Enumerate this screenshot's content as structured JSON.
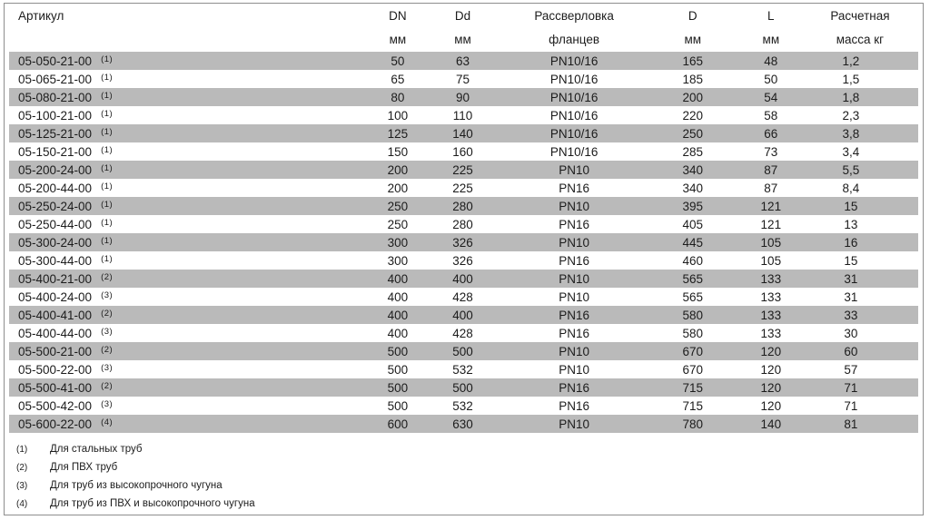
{
  "colors": {
    "stripe_gray": "#bababa",
    "border_gray": "#8e8e8e",
    "text": "#1c1c1c"
  },
  "table": {
    "columns": [
      {
        "label": "Артикул",
        "unit": ""
      },
      {
        "label": "DN",
        "unit": "мм"
      },
      {
        "label": "Dd",
        "unit": "мм"
      },
      {
        "label": "Рассверловка",
        "unit": "фланцев"
      },
      {
        "label": "D",
        "unit": "мм"
      },
      {
        "label": "L",
        "unit": "мм"
      },
      {
        "label": "Расчетная",
        "unit": "масса кг"
      }
    ],
    "rows": [
      {
        "article": "05-050-21-00",
        "ref": "(1)",
        "dn": "50",
        "dd": "63",
        "pn": "PN10/16",
        "d": "165",
        "l": "48",
        "mass": "1,2"
      },
      {
        "article": "05-065-21-00",
        "ref": "(1)",
        "dn": "65",
        "dd": "75",
        "pn": "PN10/16",
        "d": "185",
        "l": "50",
        "mass": "1,5"
      },
      {
        "article": "05-080-21-00",
        "ref": "(1)",
        "dn": "80",
        "dd": "90",
        "pn": "PN10/16",
        "d": "200",
        "l": "54",
        "mass": "1,8"
      },
      {
        "article": "05-100-21-00",
        "ref": "(1)",
        "dn": "100",
        "dd": "110",
        "pn": "PN10/16",
        "d": "220",
        "l": "58",
        "mass": "2,3"
      },
      {
        "article": "05-125-21-00",
        "ref": "(1)",
        "dn": "125",
        "dd": "140",
        "pn": "PN10/16",
        "d": "250",
        "l": "66",
        "mass": "3,8"
      },
      {
        "article": "05-150-21-00",
        "ref": "(1)",
        "dn": "150",
        "dd": "160",
        "pn": "PN10/16",
        "d": "285",
        "l": "73",
        "mass": "3,4"
      },
      {
        "article": "05-200-24-00",
        "ref": "(1)",
        "dn": "200",
        "dd": "225",
        "pn": "PN10",
        "d": "340",
        "l": "87",
        "mass": "5,5"
      },
      {
        "article": "05-200-44-00",
        "ref": "(1)",
        "dn": "200",
        "dd": "225",
        "pn": "PN16",
        "d": "340",
        "l": "87",
        "mass": "8,4"
      },
      {
        "article": "05-250-24-00",
        "ref": "(1)",
        "dn": "250",
        "dd": "280",
        "pn": "PN10",
        "d": "395",
        "l": "121",
        "mass": "15"
      },
      {
        "article": "05-250-44-00",
        "ref": "(1)",
        "dn": "250",
        "dd": "280",
        "pn": "PN16",
        "d": "405",
        "l": "121",
        "mass": "13"
      },
      {
        "article": "05-300-24-00",
        "ref": "(1)",
        "dn": "300",
        "dd": "326",
        "pn": "PN10",
        "d": "445",
        "l": "105",
        "mass": "16"
      },
      {
        "article": "05-300-44-00",
        "ref": "(1)",
        "dn": "300",
        "dd": "326",
        "pn": "PN16",
        "d": "460",
        "l": "105",
        "mass": "15"
      },
      {
        "article": "05-400-21-00",
        "ref": "(2)",
        "dn": "400",
        "dd": "400",
        "pn": "PN10",
        "d": "565",
        "l": "133",
        "mass": "31"
      },
      {
        "article": "05-400-24-00",
        "ref": "(3)",
        "dn": "400",
        "dd": "428",
        "pn": "PN10",
        "d": "565",
        "l": "133",
        "mass": "31"
      },
      {
        "article": "05-400-41-00",
        "ref": "(2)",
        "dn": "400",
        "dd": "400",
        "pn": "PN16",
        "d": "580",
        "l": "133",
        "mass": "33"
      },
      {
        "article": "05-400-44-00",
        "ref": "(3)",
        "dn": "400",
        "dd": "428",
        "pn": "PN16",
        "d": "580",
        "l": "133",
        "mass": "30"
      },
      {
        "article": "05-500-21-00",
        "ref": "(2)",
        "dn": "500",
        "dd": "500",
        "pn": "PN10",
        "d": "670",
        "l": "120",
        "mass": "60"
      },
      {
        "article": "05-500-22-00",
        "ref": "(3)",
        "dn": "500",
        "dd": "532",
        "pn": "PN10",
        "d": "670",
        "l": "120",
        "mass": "57"
      },
      {
        "article": "05-500-41-00",
        "ref": "(2)",
        "dn": "500",
        "dd": "500",
        "pn": "PN16",
        "d": "715",
        "l": "120",
        "mass": "71"
      },
      {
        "article": "05-500-42-00",
        "ref": "(3)",
        "dn": "500",
        "dd": "532",
        "pn": "PN16",
        "d": "715",
        "l": "120",
        "mass": "71"
      },
      {
        "article": "05-600-22-00",
        "ref": "(4)",
        "dn": "600",
        "dd": "630",
        "pn": "PN10",
        "d": "780",
        "l": "140",
        "mass": "81"
      }
    ],
    "footnotes": [
      {
        "marker": "(1)",
        "text": "Для стальных труб"
      },
      {
        "marker": "(2)",
        "text": "Для ПВХ труб"
      },
      {
        "marker": "(3)",
        "text": "Для труб из высокопрочного чугуна"
      },
      {
        "marker": "(4)",
        "text": "Для труб из ПВХ и высокопрочного чугуна"
      }
    ]
  }
}
